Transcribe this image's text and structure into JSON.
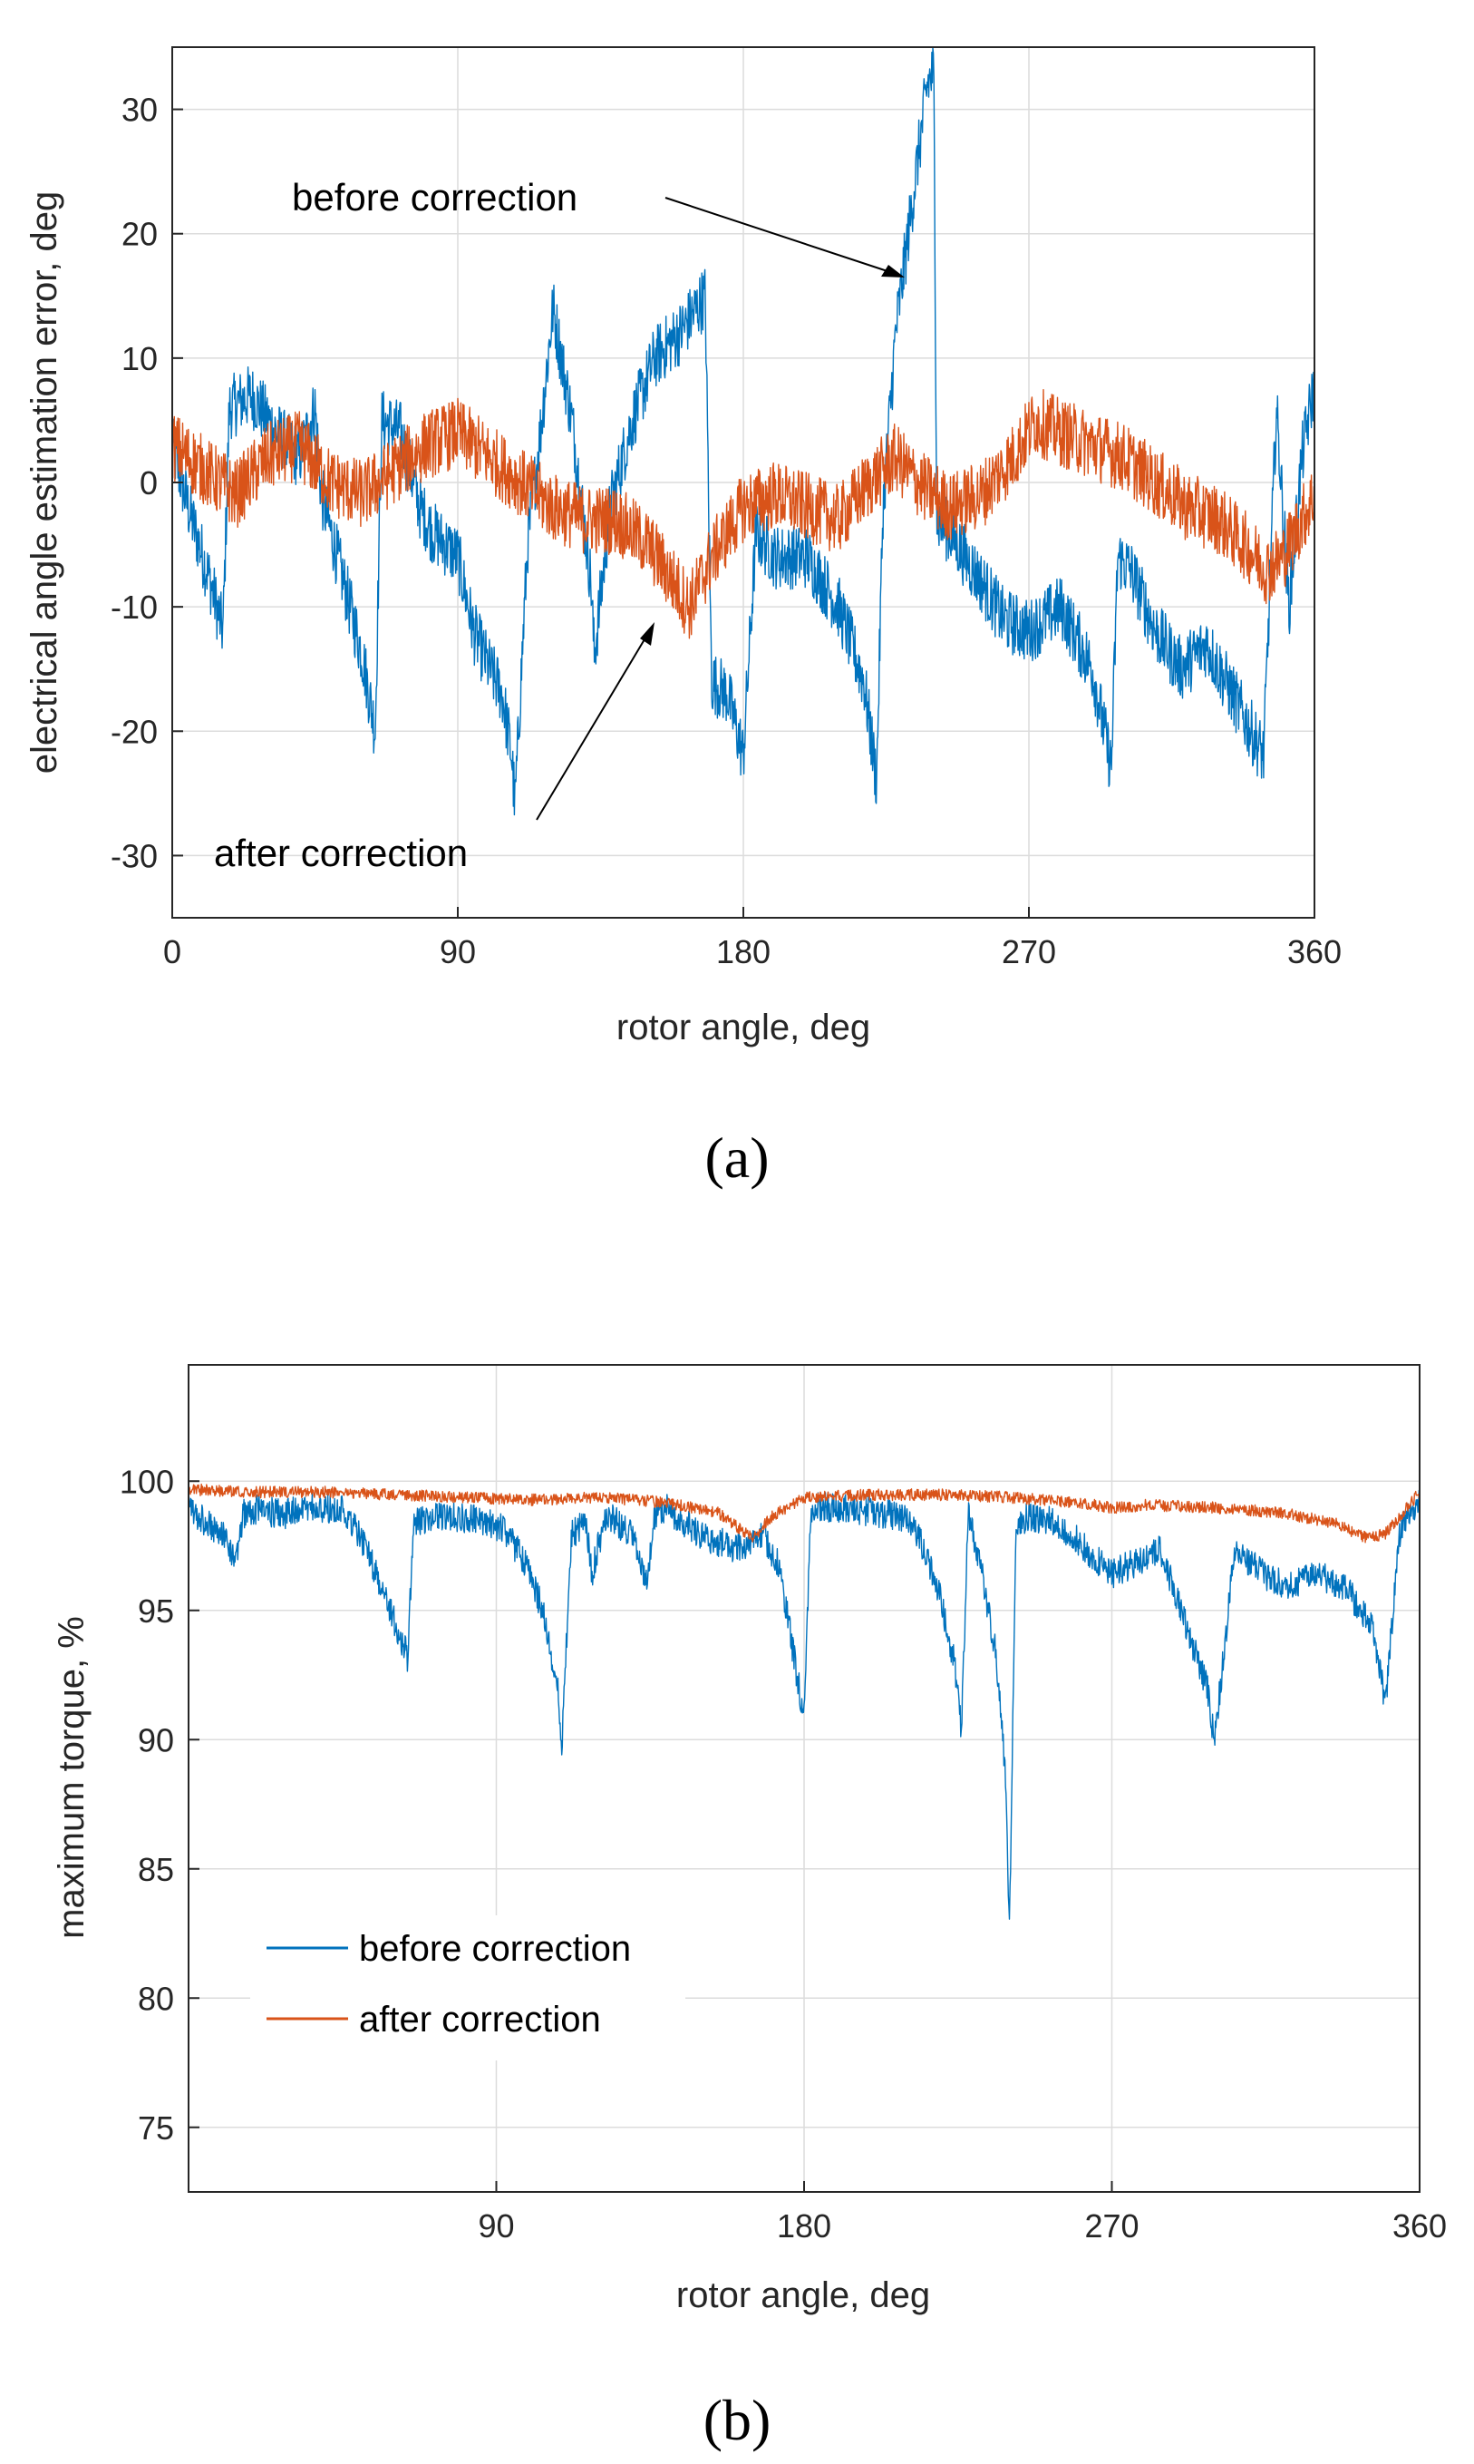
{
  "colors": {
    "before": "#0072BD",
    "after": "#D95319",
    "grid": "#dcdcdc",
    "axis": "#262626"
  },
  "chart_data": [
    {
      "type": "line",
      "panel_label": "(a)",
      "xlabel": "rotor angle, deg",
      "ylabel": "electrical angle estimation error, deg",
      "xlim": [
        0,
        360
      ],
      "ylim": [
        -35,
        35
      ],
      "xticks": [
        0,
        90,
        180,
        270,
        360
      ],
      "yticks": [
        -30,
        -20,
        -10,
        0,
        10,
        20,
        30
      ],
      "grid": true,
      "series": [
        {
          "name": "before correction",
          "x": [
            0,
            5,
            12,
            16,
            18,
            25,
            33,
            40,
            45,
            47,
            52,
            60,
            64,
            66,
            72,
            78,
            82,
            90,
            95,
            100,
            104,
            107,
            108,
            112,
            116,
            120,
            126,
            132,
            133,
            138,
            145,
            152,
            160,
            168,
            170,
            175,
            180,
            184,
            190,
            200,
            210,
            218,
            222,
            224,
            228,
            233,
            238,
            240,
            241,
            245,
            250,
            255,
            262,
            270,
            280,
            290,
            296,
            298,
            302,
            310,
            318,
            326,
            334,
            340,
            344,
            348,
            352,
            356,
            360
          ],
          "y": [
            3,
            -2,
            -8,
            -12,
            6,
            7,
            4,
            2,
            6,
            -1,
            -6,
            -14,
            -20,
            5,
            4,
            -2,
            -4,
            -6,
            -12,
            -15,
            -17,
            -22,
            -26,
            -5,
            4,
            14,
            5,
            -8,
            -14,
            -2,
            5,
            10,
            12,
            15,
            -16,
            -17,
            -22,
            -4,
            -6,
            -6,
            -10,
            -16,
            -24,
            -2,
            12,
            22,
            32,
            33,
            -3,
            -4,
            -6,
            -8,
            -11,
            -12,
            -10,
            -15,
            -23,
            -6,
            -7,
            -12,
            -15,
            -13,
            -17,
            -20,
            -22,
            6,
            -10,
            2,
            8
          ]
        },
        {
          "name": "after correction",
          "x": [
            0,
            10,
            20,
            30,
            40,
            50,
            60,
            70,
            80,
            90,
            100,
            110,
            120,
            130,
            140,
            150,
            158,
            163,
            170,
            180,
            190,
            200,
            210,
            220,
            228,
            235,
            245,
            255,
            265,
            272,
            280,
            290,
            300,
            310,
            320,
            330,
            338,
            345,
            350,
            356,
            360
          ],
          "y": [
            3,
            1,
            -1,
            2,
            3,
            0,
            -1,
            1,
            3,
            4,
            2,
            0,
            -2,
            -3,
            -3,
            -5,
            -8,
            -10,
            -6,
            -2,
            -1,
            -2,
            -3,
            0,
            2,
            0,
            -2,
            -1,
            2,
            5,
            4,
            3,
            2,
            0,
            -2,
            -3,
            -5,
            -7,
            -6,
            -3,
            -1
          ]
        }
      ],
      "annotations": [
        {
          "text": "before  correction",
          "points_to": [
            231,
            16
          ]
        },
        {
          "text": "after correction",
          "points_to": [
            160,
            -11
          ]
        }
      ]
    },
    {
      "type": "line",
      "panel_label": "(b)",
      "xlabel": "rotor angle, deg",
      "ylabel": "maximum torque, %",
      "xlim": [
        0,
        360
      ],
      "ylim": [
        72.5,
        104.5
      ],
      "xticks": [
        90,
        180,
        270,
        360
      ],
      "yticks": [
        75,
        80,
        85,
        90,
        95,
        100
      ],
      "grid": true,
      "legend": {
        "placement": "lower-left",
        "entries": [
          "before correction",
          "after correction"
        ]
      },
      "series": [
        {
          "name": "before correction",
          "x": [
            0,
            5,
            10,
            14,
            16,
            20,
            28,
            36,
            45,
            52,
            58,
            62,
            64,
            66,
            72,
            80,
            86,
            92,
            98,
            104,
            108,
            109,
            112,
            116,
            118,
            122,
            130,
            134,
            136,
            140,
            150,
            160,
            168,
            172,
            175,
            178,
            180,
            182,
            186,
            200,
            210,
            215,
            220,
            224,
            226,
            228,
            232,
            236,
            239,
            240,
            242,
            246,
            254,
            262,
            270,
            278,
            284,
            288,
            298,
            300,
            306,
            314,
            322,
            330,
            338,
            346,
            348,
            350,
            354,
            358,
            360
          ],
          "y": [
            99.5,
            99.0,
            98.5,
            97.5,
            99.3,
            99.5,
            99.3,
            99.6,
            99.5,
            98.0,
            96.0,
            94.5,
            93.8,
            99.0,
            99.2,
            99.2,
            99.0,
            98.8,
            97.5,
            95.5,
            92.5,
            90.0,
            98.5,
            99.0,
            97.0,
            99.3,
            98.5,
            96.5,
            99.2,
            99.5,
            98.5,
            98.0,
            98.5,
            97.5,
            95.5,
            93.0,
            91.5,
            99.5,
            99.6,
            99.4,
            99.2,
            98.0,
            96.0,
            93.5,
            91.0,
            99.3,
            97.0,
            94.0,
            89.0,
            83.0,
            99.0,
            99.2,
            99.0,
            98.0,
            97.0,
            97.5,
            98.0,
            96.5,
            92.5,
            90.5,
            98.0,
            97.0,
            96.5,
            97.0,
            96.5,
            95.0,
            93.5,
            92.0,
            98.5,
            99.6,
            99.8
          ]
        },
        {
          "name": "after correction",
          "x": [
            0,
            20,
            40,
            60,
            80,
            100,
            120,
            140,
            155,
            160,
            165,
            170,
            180,
            200,
            220,
            240,
            260,
            270,
            280,
            300,
            320,
            335,
            345,
            350,
            355,
            360
          ],
          "y": [
            99.9,
            99.8,
            99.8,
            99.7,
            99.6,
            99.5,
            99.6,
            99.4,
            99.0,
            98.5,
            98.0,
            98.8,
            99.6,
            99.7,
            99.7,
            99.6,
            99.4,
            99.2,
            99.3,
            99.2,
            99.0,
            98.6,
            98.0,
            98.2,
            99.0,
            99.8
          ]
        }
      ]
    }
  ]
}
